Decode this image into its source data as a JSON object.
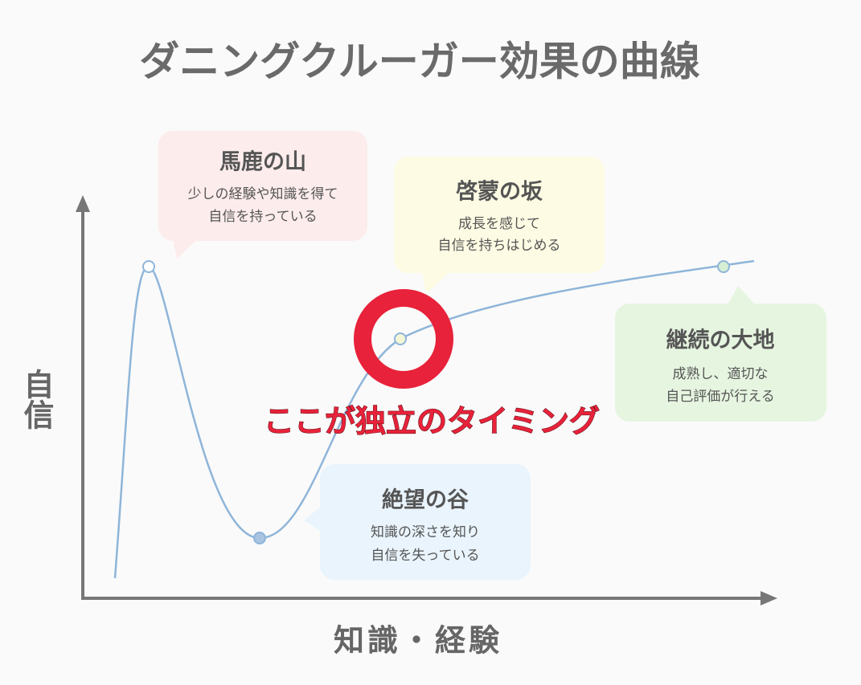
{
  "title": "ダニングクルーガー効果の曲線",
  "axes": {
    "y_label": "自信",
    "x_label": "知識・経験"
  },
  "callouts": [
    {
      "title": "馬鹿の山",
      "lines": [
        "少しの経験や知識を得て",
        "自信を持っている"
      ]
    },
    {
      "title": "啓蒙の坂",
      "lines": [
        "成長を感じて",
        "自信を持ちはじめる"
      ]
    },
    {
      "title": "継続の大地",
      "lines": [
        "成熟し、適切な",
        "自己評価が行える"
      ]
    },
    {
      "title": "絶望の谷",
      "lines": [
        "知識の深さを知り",
        "自信を失っている"
      ]
    }
  ],
  "annotation": "ここが独立のタイミング"
}
